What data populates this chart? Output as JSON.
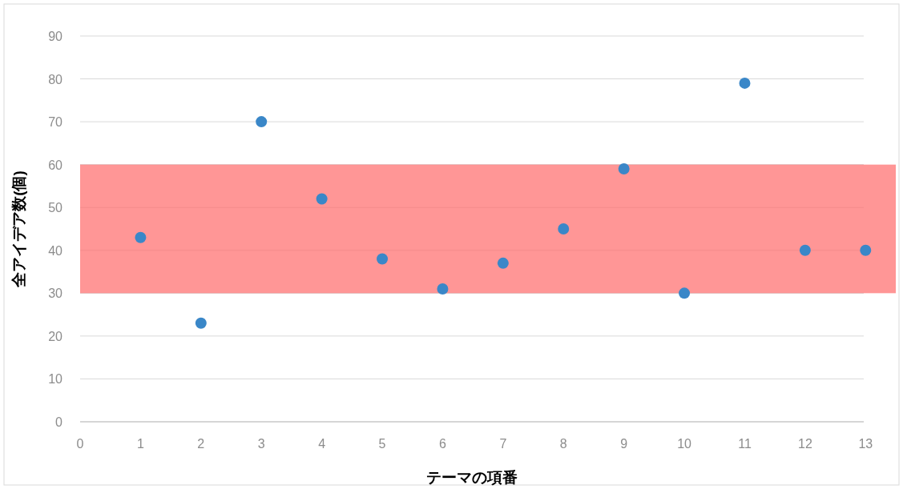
{
  "chart_data": {
    "type": "scatter",
    "xlabel": "テーマの項番",
    "ylabel": "全アイデア数(個)",
    "x": [
      1,
      2,
      3,
      4,
      5,
      6,
      7,
      8,
      9,
      10,
      11,
      12,
      13
    ],
    "series": [
      {
        "color": "#3a87c8",
        "values": [
          43,
          23,
          70,
          52,
          38,
          31,
          37,
          45,
          59,
          30,
          79,
          40,
          40
        ]
      }
    ],
    "marker": "circle",
    "xlim": [
      0,
      13.5
    ],
    "xticks": [
      0,
      1,
      2,
      3,
      4,
      5,
      6,
      7,
      8,
      9,
      10,
      11,
      12,
      13
    ],
    "ylim": [
      0,
      90
    ],
    "yticks": [
      0,
      10,
      20,
      30,
      40,
      50,
      60,
      70,
      80,
      90
    ],
    "grid": "y",
    "bands": [
      {
        "axis": "y",
        "from": 30,
        "to": 60,
        "color": "#ff6a6a"
      }
    ]
  }
}
